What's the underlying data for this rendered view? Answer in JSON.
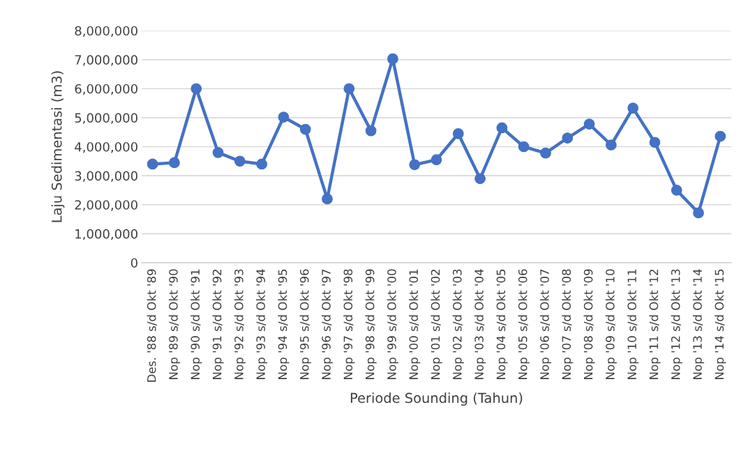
{
  "chart_data": {
    "type": "line",
    "xlabel": "Periode Sounding (Tahun)",
    "ylabel": "Laju Sedimentasi (m3)",
    "categories": [
      "Des. '88 s/d Okt '89",
      "Nop '89 s/d Okt '90",
      "Nop '90 s/d Okt '91",
      "Nop '91 s/d Okt '92",
      "Nop '92 s/d Okt '93",
      "Nop '93 s/d Okt '94",
      "Nop '94 s/d Okt '95",
      "Nop '95 s/d Okt '96",
      "Nop '96 s/d Okt '97",
      "Nop '97 s/d Okt '98",
      "Nop '98 s/d Okt '99",
      "Nop '99 s/d Okt '00",
      "Nop '00 s/d Okt '01",
      "Nop '01 s/d Okt '02",
      "Nop '02 s/d Okt '03",
      "Nop '03 s/d Okt '04",
      "Nop '04 s/d Okt '05",
      "Nop '05 s/d Okt '06",
      "Nop '06 s/d Okt '07",
      "Nop '07 s/d Okt '08",
      "Nop '08 s/d Okt '09",
      "Nop '09 s/d Okt '10",
      "Nop '10 s/d Okt '11",
      "Nop '11 s/d Okt '12",
      "Nop '12 s/d Okt '13",
      "Nop '13 s/d Okt '14",
      "Nop '14 s/d Okt '15"
    ],
    "series": [
      {
        "color": "#4472c4",
        "values": [
          3400000,
          3450000,
          6000000,
          3800000,
          3500000,
          3400000,
          5020000,
          4600000,
          2200000,
          6000000,
          4550000,
          7030000,
          3380000,
          3550000,
          4450000,
          2900000,
          4650000,
          4000000,
          3780000,
          4300000,
          4780000,
          4060000,
          5330000,
          4150000,
          2500000,
          1720000,
          4360000
        ]
      }
    ],
    "ylim": [
      0,
      8000000
    ],
    "yticks": [
      {
        "value": 0,
        "label": "0"
      },
      {
        "value": 1000000,
        "label": "1,000,000"
      },
      {
        "value": 2000000,
        "label": "2,000,000"
      },
      {
        "value": 3000000,
        "label": "3,000,000"
      },
      {
        "value": 4000000,
        "label": "4,000,000"
      },
      {
        "value": 5000000,
        "label": "5,000,000"
      },
      {
        "value": 6000000,
        "label": "6,000,000"
      },
      {
        "value": 7000000,
        "label": "7,000,000"
      },
      {
        "value": 8000000,
        "label": "8,000,000"
      }
    ],
    "grid": "y",
    "marker": "circle",
    "line_style": "solid",
    "legend": false
  }
}
